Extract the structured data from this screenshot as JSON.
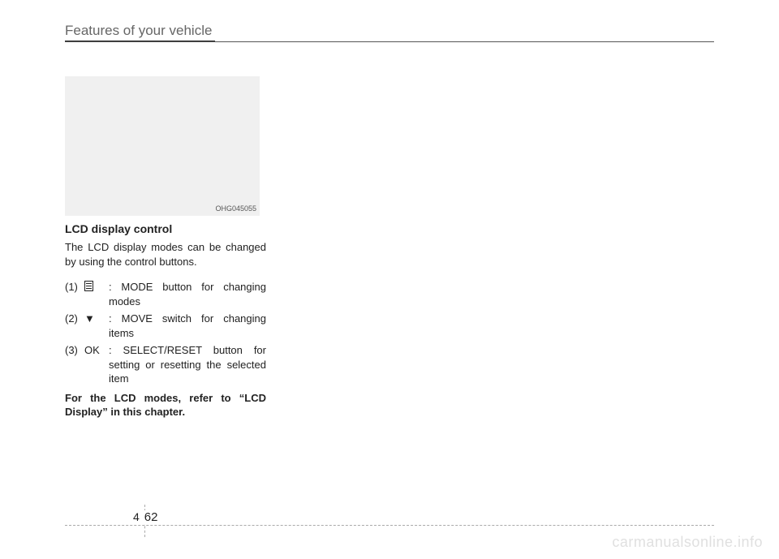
{
  "header": {
    "section_title": "Features of your vehicle"
  },
  "figure": {
    "code": "OHG045055",
    "background_color": "#f0f0f0"
  },
  "main": {
    "heading": "LCD display control",
    "intro": "The LCD display modes can be changed by using the control buttons.",
    "items": [
      {
        "num": "(1)",
        "sym_type": "mode-icon",
        "sym_text": "",
        "desc": ": MODE button for changing modes"
      },
      {
        "num": "(2)",
        "sym_type": "text",
        "sym_text": "▼",
        "desc": ": MOVE switch for changing items"
      },
      {
        "num": "(3)",
        "sym_type": "text",
        "sym_text": "OK",
        "desc": ": SELECT/RESET button for setting or resetting the selected item"
      }
    ],
    "note": "For the LCD modes, refer to “LCD Display” in this chapter."
  },
  "footer": {
    "chapter": "4",
    "page": "62"
  },
  "watermark": "carmanualsonline.info"
}
